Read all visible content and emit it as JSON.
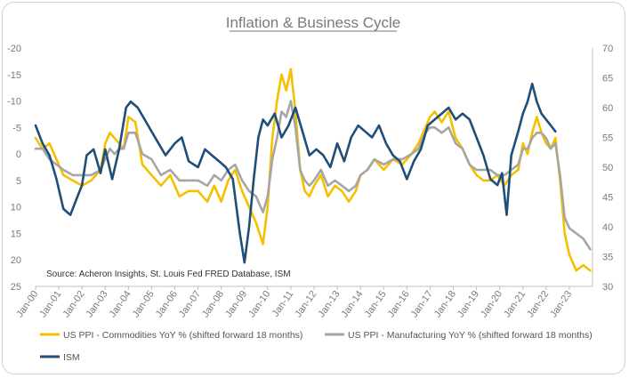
{
  "chart_data": {
    "type": "line",
    "title": "Inflation & Business Cycle",
    "source": "Source: Acheron Insights, St. Louis Fed FRED Database, ISM",
    "x_categories": [
      "Jan-00",
      "Jan-01",
      "Jan-02",
      "Jan-03",
      "Jan-04",
      "Jan-05",
      "Jan-06",
      "Jan-07",
      "Jan-08",
      "Jan-09",
      "Jan-10",
      "Jan-11",
      "Jan-12",
      "Jan-13",
      "Jan-14",
      "Jan-15",
      "Jan-16",
      "Jan-17",
      "Jan-18",
      "Jan-19",
      "Jan-20",
      "Jan-21",
      "Jan-22",
      "Jan-23"
    ],
    "left_axis": {
      "ticks": [
        "-20",
        "-15",
        "-10",
        "-5",
        "0",
        "5",
        "10",
        "15",
        "20",
        "25"
      ],
      "reversed": true,
      "ylim": [
        -20,
        25
      ]
    },
    "right_axis": {
      "ticks": [
        "70",
        "65",
        "60",
        "55",
        "50",
        "45",
        "40",
        "35",
        "30"
      ],
      "ylim": [
        30,
        70
      ]
    },
    "series": [
      {
        "name": "US PPI - Commodities YoY % (shifted forward 18 months)",
        "color": "#F5C000",
        "axis": "left",
        "x": [
          2000.0,
          2000.3,
          2000.6,
          2000.9,
          2001.2,
          2001.6,
          2002.0,
          2002.4,
          2002.8,
          2003.0,
          2003.2,
          2003.4,
          2003.6,
          2003.8,
          2004.0,
          2004.3,
          2004.6,
          2005.0,
          2005.4,
          2005.8,
          2006.2,
          2006.6,
          2007.0,
          2007.4,
          2007.7,
          2008.0,
          2008.3,
          2008.6,
          2008.9,
          2009.2,
          2009.5,
          2009.8,
          2010.0,
          2010.2,
          2010.4,
          2010.6,
          2010.8,
          2011.0,
          2011.2,
          2011.4,
          2011.6,
          2011.8,
          2012.0,
          2012.3,
          2012.6,
          2012.9,
          2013.2,
          2013.5,
          2013.8,
          2014.0,
          2014.3,
          2014.6,
          2015.0,
          2015.4,
          2015.8,
          2016.2,
          2016.5,
          2016.8,
          2017.0,
          2017.2,
          2017.5,
          2017.8,
          2018.1,
          2018.4,
          2018.7,
          2019.0,
          2019.3,
          2019.6,
          2019.9,
          2020.2,
          2020.5,
          2020.8,
          2021.0,
          2021.2,
          2021.4,
          2021.6,
          2021.8,
          2022.0,
          2022.2,
          2022.4,
          2022.6,
          2022.8,
          2023.0,
          2023.3,
          2023.6,
          2023.9
        ],
        "values": [
          -3,
          -1,
          -2,
          1,
          4,
          5,
          6,
          5,
          3,
          -2,
          -4,
          -3,
          -2,
          -1,
          -7,
          -6,
          2,
          4,
          6,
          4,
          8,
          7,
          7,
          9,
          6,
          9,
          5,
          3,
          7,
          10,
          13,
          17,
          10,
          -3,
          -10,
          -15,
          -12,
          -16,
          -8,
          3,
          7,
          8,
          6,
          4,
          8,
          6,
          7,
          9,
          7,
          4,
          3,
          1,
          3,
          1,
          2,
          0,
          -2,
          -5,
          -7,
          -8,
          -6,
          -8,
          -3,
          -1,
          2,
          4,
          5,
          5,
          4,
          6,
          4,
          3,
          -2,
          0,
          -4,
          -7,
          -4,
          -2,
          -1,
          -3,
          5,
          15,
          19,
          22,
          21,
          22
        ]
      },
      {
        "name": "US PPI - Manufacturing YoY % (shifted forward 18 months)",
        "color": "#A6A6A6",
        "axis": "left",
        "x": [
          2000.0,
          2000.3,
          2000.6,
          2000.9,
          2001.2,
          2001.6,
          2002.0,
          2002.4,
          2002.8,
          2003.0,
          2003.2,
          2003.4,
          2003.6,
          2003.8,
          2004.0,
          2004.3,
          2004.6,
          2005.0,
          2005.4,
          2005.8,
          2006.2,
          2006.6,
          2007.0,
          2007.4,
          2007.7,
          2008.0,
          2008.3,
          2008.6,
          2008.9,
          2009.2,
          2009.5,
          2009.8,
          2010.0,
          2010.2,
          2010.4,
          2010.6,
          2010.8,
          2011.0,
          2011.2,
          2011.4,
          2011.6,
          2011.8,
          2012.0,
          2012.3,
          2012.6,
          2012.9,
          2013.2,
          2013.5,
          2013.8,
          2014.0,
          2014.3,
          2014.6,
          2015.0,
          2015.4,
          2015.8,
          2016.2,
          2016.5,
          2016.8,
          2017.0,
          2017.2,
          2017.5,
          2017.8,
          2018.1,
          2018.4,
          2018.7,
          2019.0,
          2019.3,
          2019.6,
          2019.9,
          2020.2,
          2020.5,
          2020.8,
          2021.0,
          2021.2,
          2021.4,
          2021.6,
          2021.8,
          2022.0,
          2022.2,
          2022.4,
          2022.6,
          2022.8,
          2023.0,
          2023.3,
          2023.6,
          2023.9
        ],
        "values": [
          -1,
          -1,
          1,
          2,
          3,
          4,
          4,
          4,
          3,
          1,
          -1,
          0,
          -1,
          -1,
          -4,
          -4,
          0,
          1,
          4,
          3,
          5,
          5,
          5,
          6,
          4,
          5,
          3,
          2,
          5,
          7,
          8,
          11,
          8,
          1,
          -3,
          -8,
          -7,
          -10,
          -5,
          3,
          5,
          6,
          5,
          3,
          6,
          5,
          6,
          7,
          6,
          4,
          3,
          1,
          2,
          1,
          1,
          0,
          -1,
          -4,
          -5,
          -5,
          -4,
          -5,
          -2,
          -1,
          2,
          3,
          3,
          3,
          4,
          4,
          3,
          2,
          -1,
          -1,
          -3,
          -4,
          -4,
          -3,
          -1,
          -2,
          4,
          12,
          14,
          15,
          16,
          18
        ]
      },
      {
        "name": "ISM",
        "color": "#1F4E79",
        "axis": "right",
        "x": [
          2000.0,
          2000.3,
          2000.6,
          2000.9,
          2001.2,
          2001.5,
          2001.8,
          2002.0,
          2002.2,
          2002.5,
          2002.8,
          2003.0,
          2003.3,
          2003.6,
          2003.9,
          2004.1,
          2004.4,
          2004.7,
          2005.0,
          2005.3,
          2005.6,
          2006.0,
          2006.3,
          2006.6,
          2007.0,
          2007.3,
          2007.6,
          2007.9,
          2008.2,
          2008.5,
          2008.8,
          2009.0,
          2009.2,
          2009.4,
          2009.6,
          2009.8,
          2010.0,
          2010.3,
          2010.6,
          2010.9,
          2011.2,
          2011.5,
          2011.8,
          2012.1,
          2012.4,
          2012.7,
          2013.0,
          2013.3,
          2013.6,
          2013.9,
          2014.2,
          2014.5,
          2014.8,
          2015.1,
          2015.4,
          2015.7,
          2016.0,
          2016.3,
          2016.6,
          2016.9,
          2017.2,
          2017.5,
          2017.8,
          2018.1,
          2018.4,
          2018.7,
          2019.0,
          2019.3,
          2019.6,
          2019.9,
          2020.1,
          2020.3,
          2020.5,
          2020.8,
          2021.0,
          2021.2,
          2021.4,
          2021.6,
          2021.8,
          2022.0,
          2022.2,
          2022.4
        ],
        "values": [
          57,
          54,
          52,
          48,
          43,
          42,
          45,
          47,
          52,
          53,
          49,
          53,
          48,
          53,
          60,
          61,
          60,
          58,
          56,
          54,
          52,
          54,
          55,
          51,
          50,
          53,
          52,
          51,
          50,
          48,
          39,
          34,
          40,
          48,
          55,
          58,
          57,
          59,
          55,
          57,
          60,
          56,
          52,
          53,
          52,
          50,
          54,
          51,
          55,
          57,
          56,
          55,
          57,
          54,
          52,
          51,
          48,
          51,
          53,
          57,
          58,
          59,
          60,
          58,
          59,
          58,
          55,
          52,
          48,
          47,
          49,
          42,
          52,
          56,
          59,
          61,
          64,
          61,
          59,
          58,
          57,
          56
        ]
      }
    ],
    "legend": [
      {
        "label": "US PPI - Commodities YoY % (shifted forward 18 months)",
        "color": "#F5C000"
      },
      {
        "label": "US PPI - Manufacturing YoY % (shifted forward 18 months)",
        "color": "#A6A6A6"
      },
      {
        "label": "ISM",
        "color": "#1F4E79"
      }
    ]
  }
}
